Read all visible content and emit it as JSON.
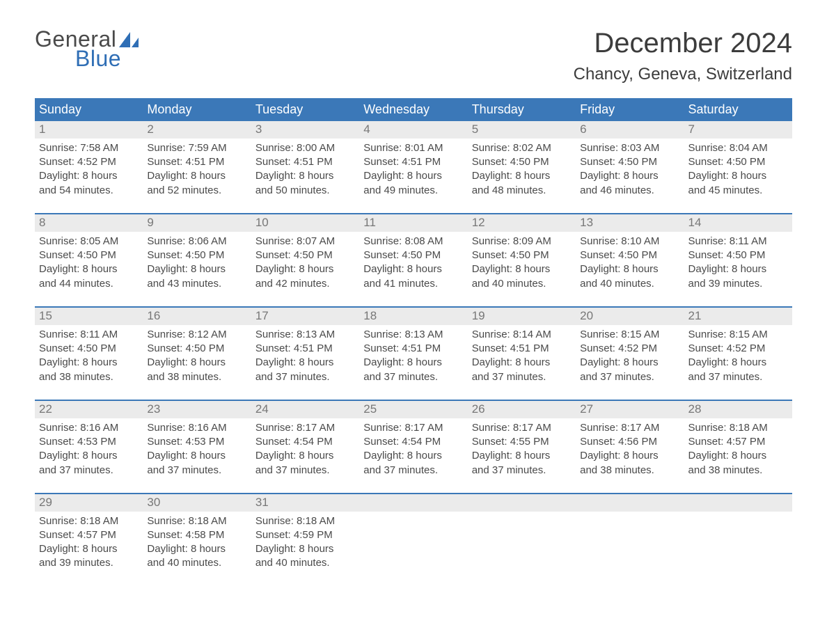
{
  "brand": {
    "word1": "General",
    "word2": "Blue",
    "accent_color": "#2f6eb5"
  },
  "title": "December 2024",
  "location": "Chancy, Geneva, Switzerland",
  "header_bg": "#3b78b8",
  "daynum_bg": "#ebebeb",
  "weekdays": [
    "Sunday",
    "Monday",
    "Tuesday",
    "Wednesday",
    "Thursday",
    "Friday",
    "Saturday"
  ],
  "weeks": [
    [
      {
        "n": "1",
        "sunrise": "7:58 AM",
        "sunset": "4:52 PM",
        "dl1": "Daylight: 8 hours",
        "dl2": "and 54 minutes."
      },
      {
        "n": "2",
        "sunrise": "7:59 AM",
        "sunset": "4:51 PM",
        "dl1": "Daylight: 8 hours",
        "dl2": "and 52 minutes."
      },
      {
        "n": "3",
        "sunrise": "8:00 AM",
        "sunset": "4:51 PM",
        "dl1": "Daylight: 8 hours",
        "dl2": "and 50 minutes."
      },
      {
        "n": "4",
        "sunrise": "8:01 AM",
        "sunset": "4:51 PM",
        "dl1": "Daylight: 8 hours",
        "dl2": "and 49 minutes."
      },
      {
        "n": "5",
        "sunrise": "8:02 AM",
        "sunset": "4:50 PM",
        "dl1": "Daylight: 8 hours",
        "dl2": "and 48 minutes."
      },
      {
        "n": "6",
        "sunrise": "8:03 AM",
        "sunset": "4:50 PM",
        "dl1": "Daylight: 8 hours",
        "dl2": "and 46 minutes."
      },
      {
        "n": "7",
        "sunrise": "8:04 AM",
        "sunset": "4:50 PM",
        "dl1": "Daylight: 8 hours",
        "dl2": "and 45 minutes."
      }
    ],
    [
      {
        "n": "8",
        "sunrise": "8:05 AM",
        "sunset": "4:50 PM",
        "dl1": "Daylight: 8 hours",
        "dl2": "and 44 minutes."
      },
      {
        "n": "9",
        "sunrise": "8:06 AM",
        "sunset": "4:50 PM",
        "dl1": "Daylight: 8 hours",
        "dl2": "and 43 minutes."
      },
      {
        "n": "10",
        "sunrise": "8:07 AM",
        "sunset": "4:50 PM",
        "dl1": "Daylight: 8 hours",
        "dl2": "and 42 minutes."
      },
      {
        "n": "11",
        "sunrise": "8:08 AM",
        "sunset": "4:50 PM",
        "dl1": "Daylight: 8 hours",
        "dl2": "and 41 minutes."
      },
      {
        "n": "12",
        "sunrise": "8:09 AM",
        "sunset": "4:50 PM",
        "dl1": "Daylight: 8 hours",
        "dl2": "and 40 minutes."
      },
      {
        "n": "13",
        "sunrise": "8:10 AM",
        "sunset": "4:50 PM",
        "dl1": "Daylight: 8 hours",
        "dl2": "and 40 minutes."
      },
      {
        "n": "14",
        "sunrise": "8:11 AM",
        "sunset": "4:50 PM",
        "dl1": "Daylight: 8 hours",
        "dl2": "and 39 minutes."
      }
    ],
    [
      {
        "n": "15",
        "sunrise": "8:11 AM",
        "sunset": "4:50 PM",
        "dl1": "Daylight: 8 hours",
        "dl2": "and 38 minutes."
      },
      {
        "n": "16",
        "sunrise": "8:12 AM",
        "sunset": "4:50 PM",
        "dl1": "Daylight: 8 hours",
        "dl2": "and 38 minutes."
      },
      {
        "n": "17",
        "sunrise": "8:13 AM",
        "sunset": "4:51 PM",
        "dl1": "Daylight: 8 hours",
        "dl2": "and 37 minutes."
      },
      {
        "n": "18",
        "sunrise": "8:13 AM",
        "sunset": "4:51 PM",
        "dl1": "Daylight: 8 hours",
        "dl2": "and 37 minutes."
      },
      {
        "n": "19",
        "sunrise": "8:14 AM",
        "sunset": "4:51 PM",
        "dl1": "Daylight: 8 hours",
        "dl2": "and 37 minutes."
      },
      {
        "n": "20",
        "sunrise": "8:15 AM",
        "sunset": "4:52 PM",
        "dl1": "Daylight: 8 hours",
        "dl2": "and 37 minutes."
      },
      {
        "n": "21",
        "sunrise": "8:15 AM",
        "sunset": "4:52 PM",
        "dl1": "Daylight: 8 hours",
        "dl2": "and 37 minutes."
      }
    ],
    [
      {
        "n": "22",
        "sunrise": "8:16 AM",
        "sunset": "4:53 PM",
        "dl1": "Daylight: 8 hours",
        "dl2": "and 37 minutes."
      },
      {
        "n": "23",
        "sunrise": "8:16 AM",
        "sunset": "4:53 PM",
        "dl1": "Daylight: 8 hours",
        "dl2": "and 37 minutes."
      },
      {
        "n": "24",
        "sunrise": "8:17 AM",
        "sunset": "4:54 PM",
        "dl1": "Daylight: 8 hours",
        "dl2": "and 37 minutes."
      },
      {
        "n": "25",
        "sunrise": "8:17 AM",
        "sunset": "4:54 PM",
        "dl1": "Daylight: 8 hours",
        "dl2": "and 37 minutes."
      },
      {
        "n": "26",
        "sunrise": "8:17 AM",
        "sunset": "4:55 PM",
        "dl1": "Daylight: 8 hours",
        "dl2": "and 37 minutes."
      },
      {
        "n": "27",
        "sunrise": "8:17 AM",
        "sunset": "4:56 PM",
        "dl1": "Daylight: 8 hours",
        "dl2": "and 38 minutes."
      },
      {
        "n": "28",
        "sunrise": "8:18 AM",
        "sunset": "4:57 PM",
        "dl1": "Daylight: 8 hours",
        "dl2": "and 38 minutes."
      }
    ],
    [
      {
        "n": "29",
        "sunrise": "8:18 AM",
        "sunset": "4:57 PM",
        "dl1": "Daylight: 8 hours",
        "dl2": "and 39 minutes."
      },
      {
        "n": "30",
        "sunrise": "8:18 AM",
        "sunset": "4:58 PM",
        "dl1": "Daylight: 8 hours",
        "dl2": "and 40 minutes."
      },
      {
        "n": "31",
        "sunrise": "8:18 AM",
        "sunset": "4:59 PM",
        "dl1": "Daylight: 8 hours",
        "dl2": "and 40 minutes."
      },
      {
        "n": "",
        "empty": true
      },
      {
        "n": "",
        "empty": true
      },
      {
        "n": "",
        "empty": true
      },
      {
        "n": "",
        "empty": true
      }
    ]
  ],
  "labels": {
    "sunrise": "Sunrise:",
    "sunset": "Sunset:"
  }
}
